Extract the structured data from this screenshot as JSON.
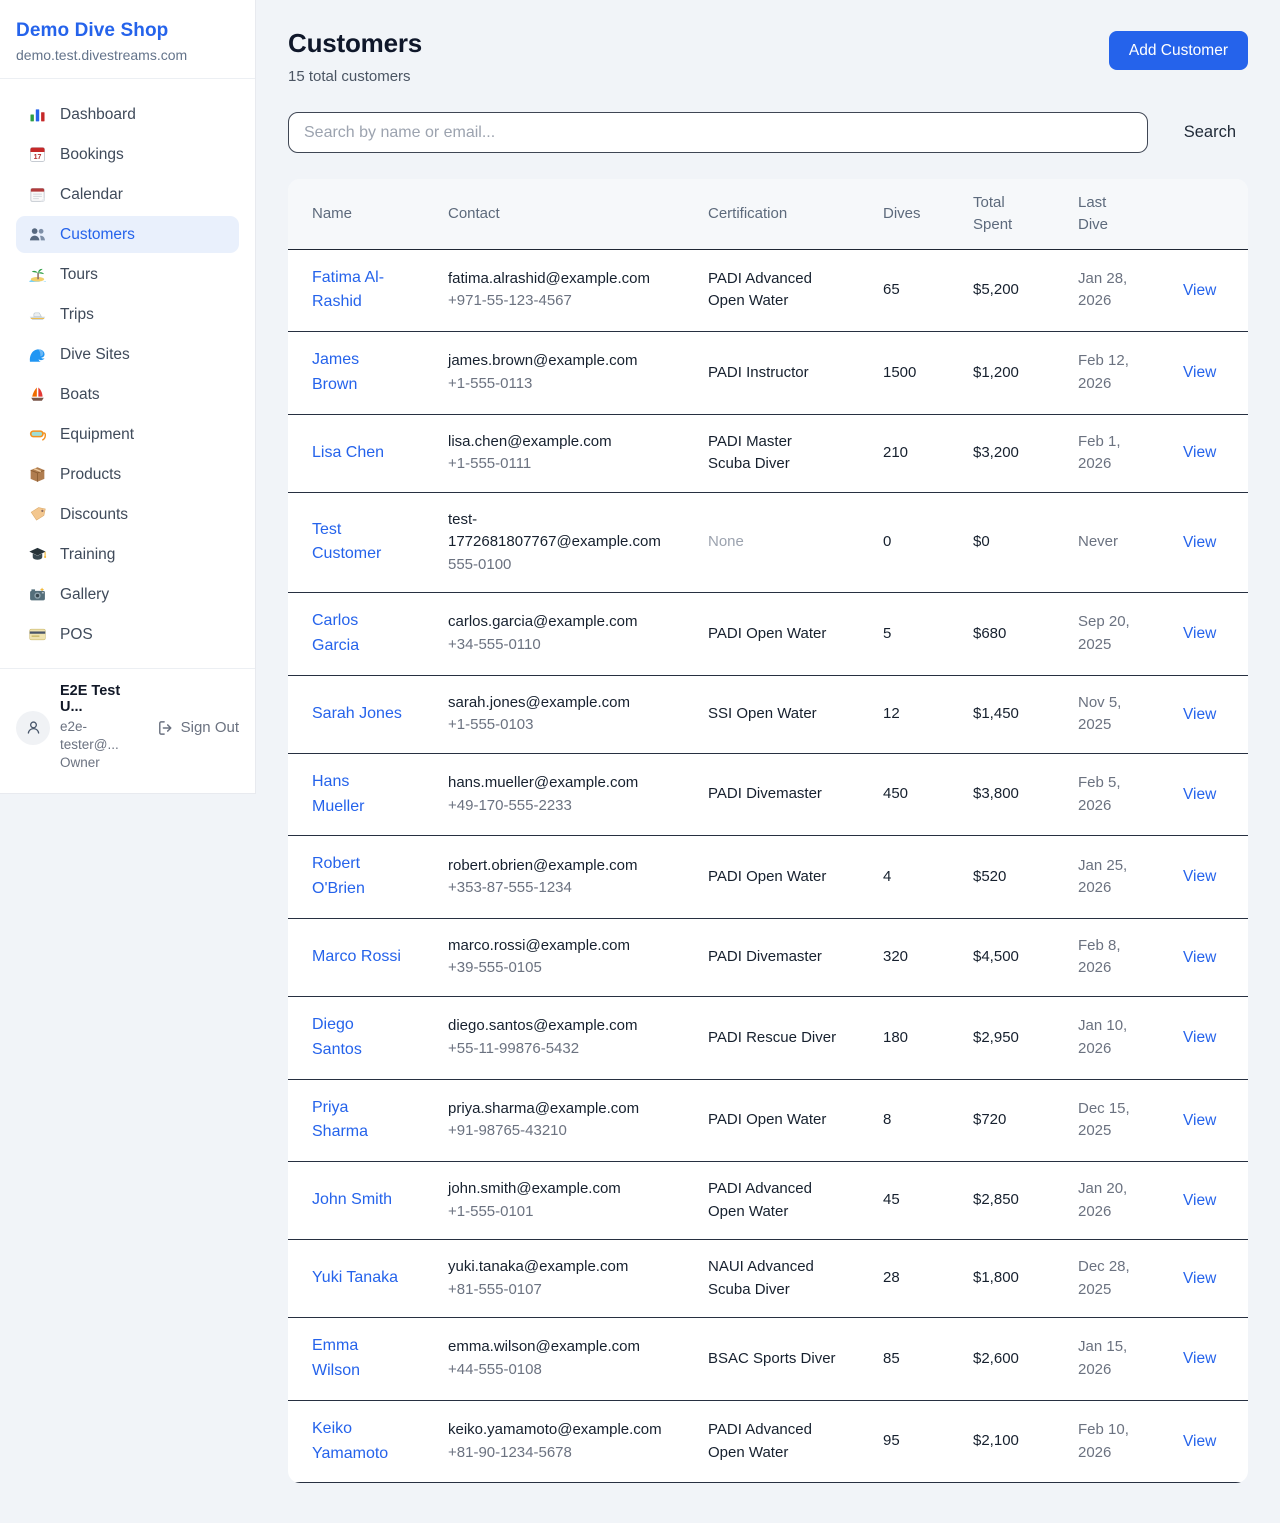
{
  "sidebar": {
    "brand": {
      "name": "Demo Dive Shop",
      "domain": "demo.test.divestreams.com"
    },
    "items": [
      {
        "label": "Dashboard",
        "icon": "bar-chart-icon",
        "active": false
      },
      {
        "label": "Bookings",
        "icon": "tear-calendar-icon",
        "active": false
      },
      {
        "label": "Calendar",
        "icon": "spiral-calendar-icon",
        "active": false
      },
      {
        "label": "Customers",
        "icon": "people-icon",
        "active": true
      },
      {
        "label": "Tours",
        "icon": "island-icon",
        "active": false
      },
      {
        "label": "Trips",
        "icon": "speedboat-icon",
        "active": false
      },
      {
        "label": "Dive Sites",
        "icon": "wave-icon",
        "active": false
      },
      {
        "label": "Boats",
        "icon": "sailboat-icon",
        "active": false
      },
      {
        "label": "Equipment",
        "icon": "dive-mask-icon",
        "active": false
      },
      {
        "label": "Products",
        "icon": "package-icon",
        "active": false
      },
      {
        "label": "Discounts",
        "icon": "tag-icon",
        "active": false
      },
      {
        "label": "Training",
        "icon": "graduation-cap-icon",
        "active": false
      },
      {
        "label": "Gallery",
        "icon": "camera-icon",
        "active": false
      },
      {
        "label": "POS",
        "icon": "credit-card-icon",
        "active": false
      }
    ],
    "user": {
      "name": "E2E Test U...",
      "email": "e2e-tester@...",
      "role": "Owner",
      "signout_label": "Sign Out"
    }
  },
  "header": {
    "title": "Customers",
    "subtitle": "15 total customers",
    "add_button": "Add Customer"
  },
  "search": {
    "placeholder": "Search by name or email...",
    "value": "",
    "button": "Search"
  },
  "table": {
    "columns": [
      "Name",
      "Contact",
      "Certification",
      "Dives",
      "Total Spent",
      "Last Dive",
      ""
    ],
    "view_label": "View",
    "rows": [
      {
        "name": "Fatima Al-Rashid",
        "email": "fatima.alrashid@example.com",
        "phone": "+971-55-123-4567",
        "certification": "PADI Advanced Open Water",
        "dives": "65",
        "total_spent": "$5,200",
        "last_dive": "Jan 28, 2026"
      },
      {
        "name": "James Brown",
        "email": "james.brown@example.com",
        "phone": "+1-555-0113",
        "certification": "PADI Instructor",
        "dives": "1500",
        "total_spent": "$1,200",
        "last_dive": "Feb 12, 2026"
      },
      {
        "name": "Lisa Chen",
        "email": "lisa.chen@example.com",
        "phone": "+1-555-0111",
        "certification": "PADI Master Scuba Diver",
        "dives": "210",
        "total_spent": "$3,200",
        "last_dive": "Feb 1, 2026"
      },
      {
        "name": "Test Customer",
        "email": "test-1772681807767@example.com",
        "phone": "555-0100",
        "certification": "None",
        "certification_muted": true,
        "dives": "0",
        "total_spent": "$0",
        "last_dive": "Never"
      },
      {
        "name": "Carlos Garcia",
        "email": "carlos.garcia@example.com",
        "phone": "+34-555-0110",
        "certification": "PADI Open Water",
        "dives": "5",
        "total_spent": "$680",
        "last_dive": "Sep 20, 2025"
      },
      {
        "name": "Sarah Jones",
        "email": "sarah.jones@example.com",
        "phone": "+1-555-0103",
        "certification": "SSI Open Water",
        "dives": "12",
        "total_spent": "$1,450",
        "last_dive": "Nov 5, 2025"
      },
      {
        "name": "Hans Mueller",
        "email": "hans.mueller@example.com",
        "phone": "+49-170-555-2233",
        "certification": "PADI Divemaster",
        "dives": "450",
        "total_spent": "$3,800",
        "last_dive": "Feb 5, 2026"
      },
      {
        "name": "Robert O'Brien",
        "email": "robert.obrien@example.com",
        "phone": "+353-87-555-1234",
        "certification": "PADI Open Water",
        "dives": "4",
        "total_spent": "$520",
        "last_dive": "Jan 25, 2026"
      },
      {
        "name": "Marco Rossi",
        "email": "marco.rossi@example.com",
        "phone": "+39-555-0105",
        "certification": "PADI Divemaster",
        "dives": "320",
        "total_spent": "$4,500",
        "last_dive": "Feb 8, 2026"
      },
      {
        "name": "Diego Santos",
        "email": "diego.santos@example.com",
        "phone": "+55-11-99876-5432",
        "certification": "PADI Rescue Diver",
        "dives": "180",
        "total_spent": "$2,950",
        "last_dive": "Jan 10, 2026"
      },
      {
        "name": "Priya Sharma",
        "email": "priya.sharma@example.com",
        "phone": "+91-98765-43210",
        "certification": "PADI Open Water",
        "dives": "8",
        "total_spent": "$720",
        "last_dive": "Dec 15, 2025"
      },
      {
        "name": "John Smith",
        "email": "john.smith@example.com",
        "phone": "+1-555-0101",
        "certification": "PADI Advanced Open Water",
        "dives": "45",
        "total_spent": "$2,850",
        "last_dive": "Jan 20, 2026"
      },
      {
        "name": "Yuki Tanaka",
        "email": "yuki.tanaka@example.com",
        "phone": "+81-555-0107",
        "certification": "NAUI Advanced Scuba Diver",
        "dives": "28",
        "total_spent": "$1,800",
        "last_dive": "Dec 28, 2025"
      },
      {
        "name": "Emma Wilson",
        "email": "emma.wilson@example.com",
        "phone": "+44-555-0108",
        "certification": "BSAC Sports Diver",
        "dives": "85",
        "total_spent": "$2,600",
        "last_dive": "Jan 15, 2026"
      },
      {
        "name": "Keiko Yamamoto",
        "email": "keiko.yamamoto@example.com",
        "phone": "+81-90-1234-5678",
        "certification": "PADI Advanced Open Water",
        "dives": "95",
        "total_spent": "$2,100",
        "last_dive": "Feb 10, 2026"
      }
    ]
  },
  "colors": {
    "accent": "#2563eb",
    "active_item_bg": "#e9f0fc",
    "link": "#2563eb",
    "page_bg": "#f1f4f8",
    "card_bg": "#ffffff",
    "table_header_bg": "#f6f8fa",
    "separator": "#273041"
  }
}
